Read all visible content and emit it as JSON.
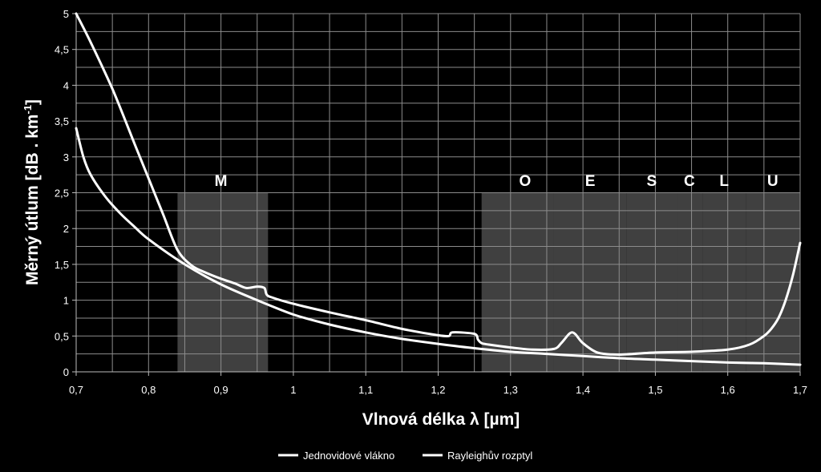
{
  "chart_data": {
    "type": "line",
    "xlabel": "Vlnová délka λ [µm]",
    "ylabel": {
      "main": "Měrný útlum [dB . km",
      "sup": "-1",
      "close": "]"
    },
    "xlim": [
      0.7,
      1.7
    ],
    "ylim": [
      0,
      5
    ],
    "x_minor_step": 0.05,
    "y_minor_step": 0.25,
    "x_ticks": [
      0.7,
      0.8,
      0.9,
      1.0,
      1.1,
      1.2,
      1.3,
      1.4,
      1.5,
      1.6,
      1.7
    ],
    "x_tick_labels": [
      "0,7",
      "0,8",
      "0,9",
      "1",
      "1,1",
      "1,2",
      "1,3",
      "1,4",
      "1,5",
      "1,6",
      "1,7"
    ],
    "y_ticks": [
      0,
      0.5,
      1,
      1.5,
      2,
      2.5,
      3,
      3.5,
      4,
      4.5,
      5
    ],
    "y_tick_labels": [
      "0",
      "0,5",
      "1",
      "1,5",
      "2",
      "2,5",
      "3",
      "3,5",
      "4",
      "4,5",
      "5"
    ],
    "grid": true,
    "legend_position": "bottom",
    "colors": {
      "background": "#000000",
      "curve": "#ffffff",
      "band": "#404040",
      "grid": "#8c8c8c"
    },
    "bands": [
      {
        "label": "M",
        "x_start": 0.84,
        "x_end": 0.965,
        "y_top": 2.5,
        "label_x": 0.9
      },
      {
        "label": "O",
        "x_start": 1.26,
        "x_end": 1.36,
        "y_top": 2.5,
        "label_x": 1.32
      },
      {
        "label": "E",
        "x_start": 1.36,
        "x_end": 1.46,
        "y_top": 2.5,
        "label_x": 1.41
      },
      {
        "label": "S",
        "x_start": 1.46,
        "x_end": 1.53,
        "y_top": 2.5,
        "label_x": 1.495
      },
      {
        "label": "C",
        "x_start": 1.53,
        "x_end": 1.565,
        "y_top": 2.5,
        "label_x": 1.547
      },
      {
        "label": "L",
        "x_start": 1.565,
        "x_end": 1.625,
        "y_top": 2.5,
        "label_x": 1.595
      },
      {
        "label": "U",
        "x_start": 1.625,
        "x_end": 1.7,
        "y_top": 2.5,
        "label_x": 1.662
      }
    ],
    "series": [
      {
        "name": "Jednovidové vlákno",
        "x": [
          0.7,
          0.72,
          0.75,
          0.78,
          0.8,
          0.82,
          0.84,
          0.86,
          0.88,
          0.9,
          0.92,
          0.935,
          0.95,
          0.96,
          0.963,
          0.97,
          1.0,
          1.05,
          1.1,
          1.15,
          1.2,
          1.215,
          1.22,
          1.25,
          1.255,
          1.26,
          1.27,
          1.3,
          1.33,
          1.36,
          1.37,
          1.38,
          1.385,
          1.39,
          1.4,
          1.42,
          1.45,
          1.5,
          1.55,
          1.6,
          1.63,
          1.65,
          1.66,
          1.67,
          1.68,
          1.69,
          1.7
        ],
        "y": [
          5.0,
          4.6,
          3.95,
          3.2,
          2.7,
          2.2,
          1.7,
          1.48,
          1.38,
          1.3,
          1.23,
          1.17,
          1.19,
          1.17,
          1.08,
          1.04,
          0.95,
          0.83,
          0.72,
          0.6,
          0.51,
          0.5,
          0.55,
          0.53,
          0.45,
          0.4,
          0.38,
          0.34,
          0.31,
          0.32,
          0.4,
          0.52,
          0.55,
          0.52,
          0.4,
          0.27,
          0.24,
          0.27,
          0.28,
          0.31,
          0.38,
          0.5,
          0.6,
          0.75,
          1.0,
          1.35,
          1.8
        ]
      },
      {
        "name": "Rayleighův rozptyl",
        "x": [
          0.7,
          0.71,
          0.72,
          0.74,
          0.76,
          0.78,
          0.8,
          0.85,
          0.9,
          0.95,
          1.0,
          1.05,
          1.1,
          1.15,
          1.2,
          1.25,
          1.3,
          1.35,
          1.4,
          1.45,
          1.5,
          1.55,
          1.6,
          1.65,
          1.7
        ],
        "y": [
          3.4,
          3.0,
          2.75,
          2.45,
          2.22,
          2.03,
          1.85,
          1.5,
          1.22,
          1.0,
          0.8,
          0.66,
          0.55,
          0.46,
          0.39,
          0.33,
          0.28,
          0.25,
          0.22,
          0.19,
          0.17,
          0.15,
          0.13,
          0.12,
          0.1
        ]
      }
    ]
  }
}
